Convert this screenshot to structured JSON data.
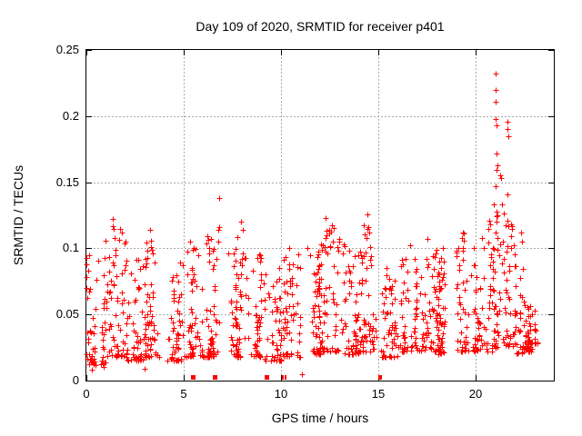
{
  "chart_data": {
    "type": "scatter",
    "title": "Day 109 of 2020, SRMTID for receiver p401",
    "x_axis": {
      "label": "GPS time / hours",
      "min": 0,
      "max": 24,
      "ticks": [
        0,
        5,
        10,
        15,
        20
      ],
      "tick_labels": [
        "0",
        "5",
        "10",
        "15",
        "20"
      ]
    },
    "y_axis": {
      "label": "SRMTID / TECUs",
      "min": 0,
      "max": 0.25,
      "ticks": [
        0,
        0.05,
        0.1,
        0.15,
        0.2,
        0.25
      ],
      "tick_labels": [
        "0",
        "0.05",
        "0.1",
        "0.15",
        "0.2",
        "0.25"
      ]
    },
    "grid": {
      "show": true,
      "color": "#aaaaaa",
      "dash": "2,2"
    },
    "border_color": "#000000",
    "background": "#ffffff",
    "marker": {
      "shape": "plus",
      "size": 7,
      "color": "#ff0000"
    },
    "series": [
      {
        "color": "#ff0000",
        "seed": 20200419,
        "notable_points": [
          [
            21.0,
            0.232
          ],
          [
            21.0,
            0.22
          ],
          [
            21.0,
            0.211
          ],
          [
            21.0,
            0.198
          ],
          [
            21.05,
            0.193
          ],
          [
            21.6,
            0.196
          ],
          [
            21.62,
            0.19
          ],
          [
            21.65,
            0.185
          ],
          [
            21.08,
            0.172
          ],
          [
            21.1,
            0.163
          ],
          [
            21.05,
            0.159
          ],
          [
            21.25,
            0.155
          ],
          [
            21.28,
            0.153
          ],
          [
            21.0,
            0.147
          ],
          [
            21.6,
            0.141
          ],
          [
            21.32,
            0.133
          ],
          [
            21.05,
            0.128
          ],
          [
            21.06,
            0.124
          ],
          [
            21.6,
            0.121
          ],
          [
            21.66,
            0.117
          ],
          [
            21.0,
            0.112
          ],
          [
            21.1,
            0.108
          ],
          [
            21.4,
            0.105
          ],
          [
            20.62,
            0.115
          ],
          [
            20.7,
            0.121
          ],
          [
            20.75,
            0.118
          ],
          [
            20.9,
            0.133
          ],
          [
            6.8,
            0.138
          ],
          [
            6.8,
            0.116
          ],
          [
            6.75,
            0.114
          ],
          [
            6.78,
            0.105
          ],
          [
            1.35,
            0.122
          ],
          [
            1.35,
            0.117
          ],
          [
            1.4,
            0.115
          ],
          [
            1.0,
            0.106
          ],
          [
            1.5,
            0.099
          ],
          [
            2.0,
            0.105
          ],
          [
            3.27,
            0.114
          ],
          [
            3.3,
            0.106
          ],
          [
            3.32,
            0.101
          ],
          [
            3.35,
            0.099
          ],
          [
            0.15,
            0.095
          ],
          [
            0.93,
            0.093
          ],
          [
            5.32,
            0.105
          ],
          [
            5.5,
            0.1
          ],
          [
            6.15,
            0.104
          ],
          [
            6.3,
            0.1
          ],
          [
            7.95,
            0.12
          ],
          [
            8.02,
            0.114
          ],
          [
            7.3,
            0.096
          ],
          [
            8.95,
            0.093
          ],
          [
            10.4,
            0.1
          ],
          [
            11.35,
            0.1
          ],
          [
            11.5,
            0.095
          ],
          [
            12.3,
            0.123
          ],
          [
            12.32,
            0.113
          ],
          [
            12.28,
            0.108
          ],
          [
            13.0,
            0.105
          ],
          [
            14.42,
            0.126
          ],
          [
            14.45,
            0.115
          ],
          [
            14.4,
            0.108
          ],
          [
            16.6,
            0.102
          ],
          [
            17.5,
            0.107
          ],
          [
            18.3,
            0.1
          ],
          [
            19.35,
            0.112
          ],
          [
            19.4,
            0.106
          ],
          [
            20.3,
            0.108
          ],
          [
            22.3,
            0.112
          ],
          [
            22.35,
            0.105
          ],
          [
            11.05,
            0.005
          ],
          [
            0.3,
            0.008
          ],
          [
            0.9,
            0.01
          ],
          [
            3.0,
            0.009
          ]
        ],
        "zero_square_markers": [
          5.46,
          6.58,
          9.24
        ],
        "zero_tick_markers": [
          10.08,
          10.22,
          15.03,
          15.12
        ],
        "density_profile": [
          [
            0.0,
            1.0,
            58,
            0.012,
            0.095
          ],
          [
            1.0,
            2.0,
            58,
            0.018,
            0.115
          ],
          [
            2.0,
            3.0,
            56,
            0.015,
            0.1
          ],
          [
            3.0,
            4.0,
            55,
            0.018,
            0.105
          ],
          [
            4.0,
            5.0,
            55,
            0.015,
            0.09
          ],
          [
            5.0,
            6.0,
            55,
            0.018,
            0.1
          ],
          [
            6.0,
            7.0,
            58,
            0.018,
            0.112
          ],
          [
            7.0,
            8.0,
            58,
            0.018,
            0.11
          ],
          [
            8.0,
            9.0,
            55,
            0.018,
            0.098
          ],
          [
            9.0,
            10.0,
            50,
            0.015,
            0.085
          ],
          [
            10.0,
            11.0,
            58,
            0.018,
            0.098
          ],
          [
            11.0,
            12.0,
            58,
            0.02,
            0.105
          ],
          [
            12.0,
            13.0,
            60,
            0.022,
            0.118
          ],
          [
            13.0,
            14.0,
            58,
            0.02,
            0.105
          ],
          [
            14.0,
            15.0,
            60,
            0.022,
            0.118
          ],
          [
            15.0,
            16.0,
            55,
            0.018,
            0.092
          ],
          [
            16.0,
            17.0,
            55,
            0.022,
            0.098
          ],
          [
            17.0,
            18.0,
            55,
            0.022,
            0.1
          ],
          [
            18.0,
            19.0,
            55,
            0.02,
            0.098
          ],
          [
            19.0,
            20.0,
            60,
            0.022,
            0.112
          ],
          [
            20.0,
            21.0,
            60,
            0.022,
            0.105
          ],
          [
            21.0,
            22.0,
            62,
            0.025,
            0.128
          ],
          [
            22.0,
            22.45,
            28,
            0.02,
            0.105
          ],
          [
            22.45,
            23.0,
            46,
            0.022,
            0.06
          ],
          [
            23.0,
            23.18,
            10,
            0.028,
            0.055
          ]
        ]
      }
    ]
  }
}
